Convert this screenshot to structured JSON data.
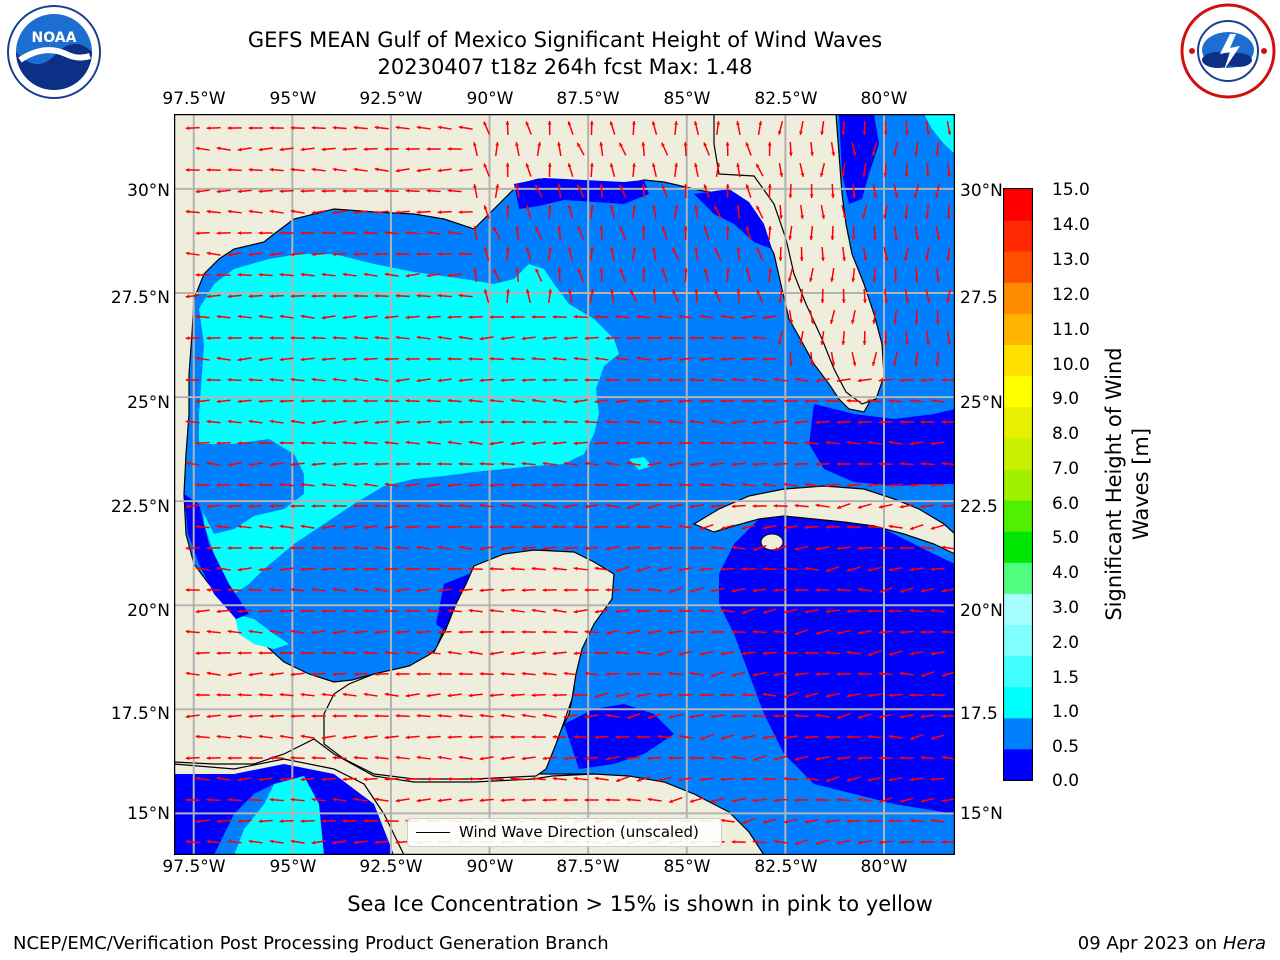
{
  "title": {
    "line1": "GEFS MEAN Gulf of Mexico Significant Height of Wind Waves",
    "line2": "20230407 t18z 264h fcst   Max: 1.48"
  },
  "logos": {
    "left": {
      "name": "noaa-logo",
      "text": "NOAA",
      "ring_text": "NATIONAL OCEANIC AND ATMOSPHERIC ADMINISTRATION · U.S. DEPARTMENT OF COMMERCE"
    },
    "right": {
      "name": "national-weather-service-logo",
      "ring_text": "NATIONAL WEATHER SERVICE"
    }
  },
  "map": {
    "lon_ticks": [
      "97.5°W",
      "95°W",
      "92.5°W",
      "90°W",
      "87.5°W",
      "85°W",
      "82.5°W",
      "80°W"
    ],
    "lat_ticks_left": [
      "30°N",
      "27.5°N",
      "25°N",
      "22.5°N",
      "20°N",
      "17.5°N",
      "15°N"
    ],
    "lat_ticks_right": [
      "30°N",
      "27.5",
      "25°N",
      "22.5",
      "20°N",
      "17.5",
      "15°N"
    ],
    "extent": {
      "lon": [
        -98,
        -78.2
      ],
      "lat": [
        14,
        31.8
      ]
    },
    "colors": {
      "land": "#efeddc",
      "grid": "#b3b3b3",
      "arrow": "#ff0000",
      "coast": "#000000"
    },
    "legend_label": "Wind Wave Direction (unscaled)"
  },
  "colorbar": {
    "label_line1": "Significant Height of Wind",
    "label_line2": "Waves [m]",
    "ticks": [
      "15.0",
      "14.0",
      "13.0",
      "12.0",
      "11.0",
      "10.0",
      "9.0",
      "8.0",
      "7.0",
      "6.0",
      "5.0",
      "4.0",
      "3.0",
      "2.0",
      "1.5",
      "1.0",
      "0.5",
      "0.0"
    ],
    "colors": [
      "#0000ff",
      "#0080ff",
      "#00ffff",
      "#40ffff",
      "#80ffff",
      "#a8ffff",
      "#50ff80",
      "#00e600",
      "#50f000",
      "#a0f000",
      "#c8f000",
      "#e6f000",
      "#ffff00",
      "#ffe000",
      "#ffb400",
      "#ff8c00",
      "#ff5000",
      "#ff2800",
      "#ff0000"
    ]
  },
  "footer": {
    "sea_ice_note": "Sea Ice Concentration > 15% is shown in pink to yellow",
    "left": "NCEP/EMC/Verification Post Processing Product Generation Branch",
    "right_prefix": "09 Apr 2023 on ",
    "right_host": "Hera"
  }
}
